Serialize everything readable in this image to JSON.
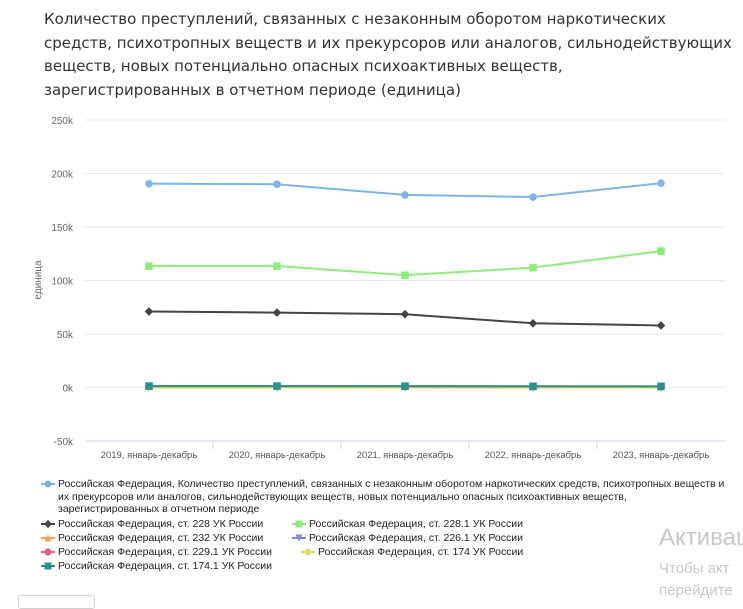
{
  "title": "Количество преступлений, связанных с незаконным оборотом наркотических средств, психотропных веществ и их прекурсоров или аналогов, сильнодействующих веществ, новых потенциально опасных психоактивных веществ, зарегистрированных в отчетном периоде (единица)",
  "watermark": {
    "line1": "Активац",
    "line2": "Чтобы акт",
    "line3": "перейдите"
  },
  "chart_data": {
    "type": "line",
    "title": "Количество преступлений, связанных с незаконным оборотом наркотических средств, психотропных веществ и их прекурсоров или аналогов, сильнодействующих веществ, новых потенциально опасных психоактивных веществ, зарегистрированных в отчетном периоде (единица)",
    "ylabel": "единица",
    "xlabel": "",
    "categories": [
      "2019, январь-декабрь",
      "2020, январь-декабрь",
      "2021, январь-декабрь",
      "2022, январь-декабрь",
      "2023, январь-декабрь"
    ],
    "ylim": [
      -50000,
      250000
    ],
    "yticks": [
      -50000,
      0,
      50000,
      100000,
      150000,
      200000,
      250000
    ],
    "ytick_labels": [
      "-50k",
      "0k",
      "50k",
      "100k",
      "150k",
      "200k",
      "250k"
    ],
    "grid": true,
    "legend_position": "bottom",
    "series": [
      {
        "name": "Российская Федерация, Количество преступлений, связанных с незаконным оборотом наркотических средств, психотропных веществ и их прекурсоров или аналогов, сильнодействующих веществ, новых потенциально опасных психоактивных веществ, зарегистрированных в отчетном периоде",
        "color": "#7cb5ec",
        "marker": "circle",
        "values": [
          190500,
          190000,
          180000,
          178000,
          191000
        ]
      },
      {
        "name": "Российская Федерация, ст. 228 УК России",
        "color": "#434348",
        "marker": "diamond",
        "values": [
          71000,
          70000,
          68500,
          60000,
          58000
        ]
      },
      {
        "name": "Российская Федерация, ст. 228.1 УК России",
        "color": "#90ed7d",
        "marker": "square",
        "values": [
          113500,
          113500,
          105000,
          112000,
          127500
        ]
      },
      {
        "name": "Российская Федерация, ст. 232 УК России",
        "color": "#f7a35c",
        "marker": "triangle",
        "values": [
          1500,
          1500,
          1400,
          1200,
          1100
        ]
      },
      {
        "name": "Российская Федерация, ст. 226.1 УК России",
        "color": "#8085e9",
        "marker": "triangle-down",
        "values": [
          900,
          900,
          900,
          800,
          800
        ]
      },
      {
        "name": "Российская Федерация, ст. 229.1 УК России",
        "color": "#f15c80",
        "marker": "circle",
        "values": [
          1200,
          1200,
          1200,
          1000,
          900
        ]
      },
      {
        "name": "Российская Федерация, ст. 174 УК России",
        "color": "#e4d354",
        "marker": "diamond",
        "values": [
          50,
          50,
          50,
          50,
          50
        ]
      },
      {
        "name": "Российская Федерация, ст. 174.1 УК России",
        "color": "#2b908f",
        "marker": "square",
        "values": [
          1300,
          1300,
          1200,
          1000,
          1000
        ]
      }
    ]
  }
}
